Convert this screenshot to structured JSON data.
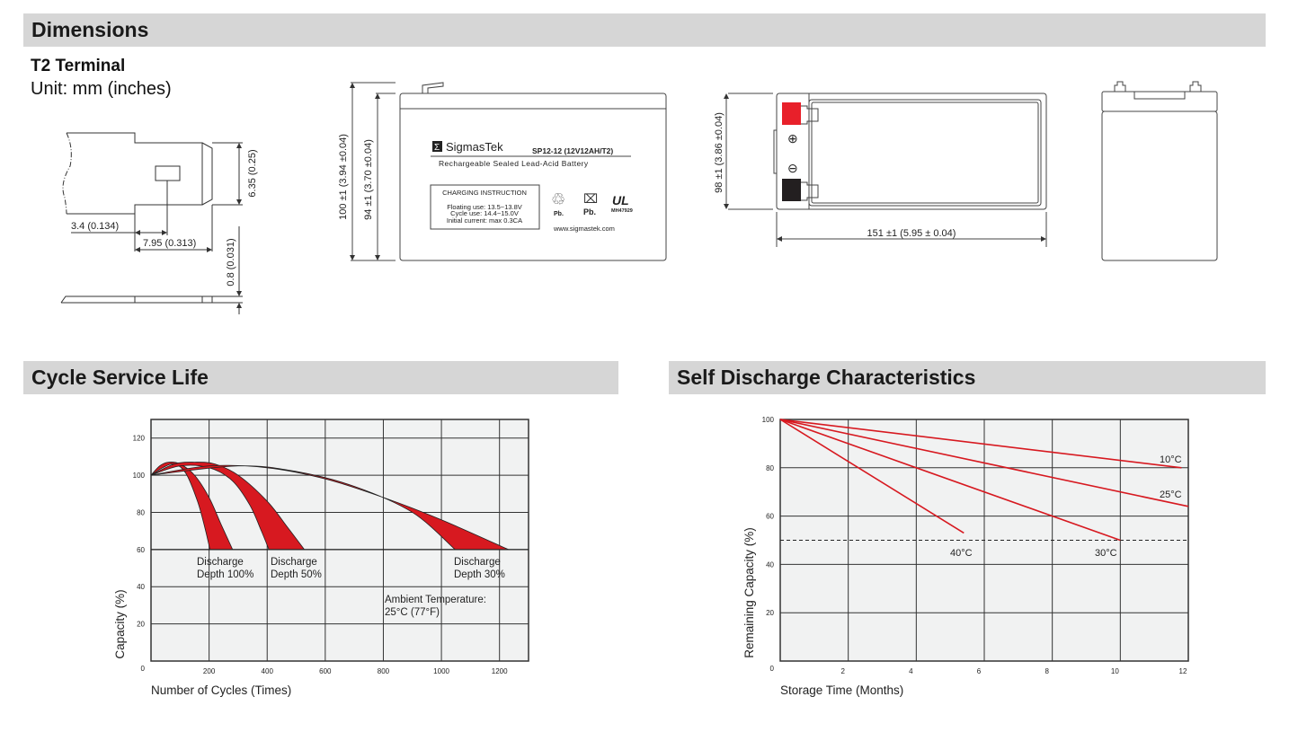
{
  "sections": {
    "dimensions": "Dimensions",
    "cycle": "Cycle Service Life",
    "self_discharge": "Self Discharge Characteristics"
  },
  "terminal": {
    "title": "T2 Terminal",
    "unit": "Unit: mm (inches)",
    "dim_height": "6.35 (0.25)",
    "dim_hole": "3.4 (0.134)",
    "dim_length": "7.95 (0.313)",
    "dim_thickness": "0.8 (0.031)"
  },
  "battery_front": {
    "dim_total_height": "100 ±1 (3.94 ±0.04)",
    "dim_case_height": "94 ±1 (3.70 ±0.04)",
    "brand_logo": "Σ",
    "brand": "SigmasTek",
    "model": "SP12-12 (12V12AH/T2)",
    "description": "Rechargeable Sealed Lead-Acid Battery",
    "charging_title": "CHARGING INSTRUCTION",
    "charging_lines": [
      "Floating use: 13.5~13.8V",
      "Cycle use: 14.4~15.0V",
      "Initial current: max 0.3CA"
    ],
    "recycle_label": "Pb.",
    "bin_label": "Pb.",
    "ul_mark": "MH47929",
    "website": "www.sigmastek.com"
  },
  "battery_top": {
    "dim_width": "98 ±1 (3.86 ±0.04)",
    "dim_length": "151 ±1 (5.95 ± 0.04)",
    "positive_symbol": "⊕",
    "negative_symbol": "⊖",
    "positive_color": "#e8202a",
    "negative_color": "#231f20"
  },
  "chart_data": [
    {
      "type": "area",
      "xlabel": "Number of Cycles (Times)",
      "ylabel": "Capacity (%)",
      "xlim": [
        0,
        1300
      ],
      "ylim": [
        0,
        130
      ],
      "xticks": [
        200,
        400,
        600,
        800,
        1000,
        1200
      ],
      "yticks": [
        0,
        20,
        40,
        60,
        80,
        100,
        120
      ],
      "grid": true,
      "band_color": "#d71920",
      "series": [
        {
          "name": "Discharge Depth 100%",
          "upper": [
            [
              0,
              100
            ],
            [
              30,
              105
            ],
            [
              60,
              107
            ],
            [
              100,
              106
            ],
            [
              150,
              100
            ],
            [
              200,
              88
            ],
            [
              240,
              74
            ],
            [
              281,
              60
            ]
          ],
          "lower": [
            [
              0,
              100
            ],
            [
              40,
              104
            ],
            [
              80,
              106
            ],
            [
              120,
              101
            ],
            [
              160,
              86
            ],
            [
              185,
              72
            ],
            [
              203,
              60
            ]
          ]
        },
        {
          "name": "Discharge Depth 50%",
          "upper": [
            [
              0,
              100
            ],
            [
              80,
              106
            ],
            [
              150,
              107
            ],
            [
              220,
              106
            ],
            [
              300,
              100
            ],
            [
              400,
              86
            ],
            [
              470,
              72
            ],
            [
              528,
              60
            ]
          ],
          "lower": [
            [
              0,
              100
            ],
            [
              100,
              105
            ],
            [
              200,
              104
            ],
            [
              280,
              97
            ],
            [
              340,
              84
            ],
            [
              380,
              70
            ],
            [
              406,
              60
            ]
          ]
        },
        {
          "name": "Discharge Depth 30%",
          "upper": [
            [
              0,
              100
            ],
            [
              200,
              105
            ],
            [
              400,
              104
            ],
            [
              600,
              98
            ],
            [
              800,
              88
            ],
            [
              1000,
              76
            ],
            [
              1231,
              60
            ]
          ],
          "lower": [
            [
              0,
              100
            ],
            [
              300,
              105
            ],
            [
              500,
              102
            ],
            [
              700,
              94
            ],
            [
              900,
              80
            ],
            [
              1047,
              60
            ]
          ]
        }
      ],
      "annotations": [
        {
          "lines": [
            "Discharge",
            "Depth 100%"
          ]
        },
        {
          "lines": [
            "Discharge",
            "Depth 50%"
          ]
        },
        {
          "lines": [
            "Discharge",
            "Depth 30%"
          ]
        },
        {
          "lines": [
            "Ambient Temperature:",
            "25°C (77°F)"
          ]
        }
      ]
    },
    {
      "type": "line",
      "xlabel": "Storage Time (Months)",
      "ylabel": "Remaining Capacity (%)",
      "xlim": [
        0,
        12
      ],
      "ylim": [
        0,
        100
      ],
      "xticks": [
        2,
        4,
        6,
        8,
        10,
        12
      ],
      "yticks": [
        0,
        20,
        40,
        60,
        80,
        100
      ],
      "grid": true,
      "reference_line": 50,
      "line_color": "#d71920",
      "series": [
        {
          "name": "10°C",
          "points": [
            [
              0,
              100
            ],
            [
              11.8,
              80
            ]
          ]
        },
        {
          "name": "25°C",
          "points": [
            [
              0,
              100
            ],
            [
              12,
              64
            ]
          ]
        },
        {
          "name": "30°C",
          "points": [
            [
              0,
              100
            ],
            [
              10,
              50
            ]
          ]
        },
        {
          "name": "40°C",
          "points": [
            [
              0,
              100
            ],
            [
              5.4,
              53
            ]
          ]
        }
      ]
    }
  ]
}
